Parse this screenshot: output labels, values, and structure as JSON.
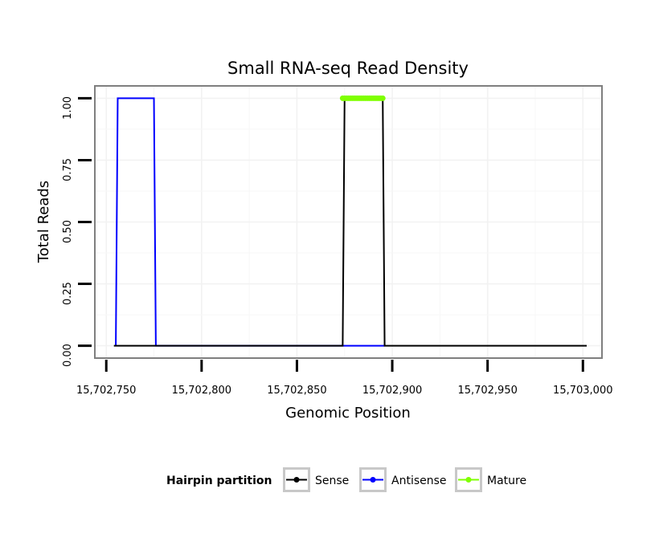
{
  "chart_data": {
    "type": "line",
    "title": "Small RNA-seq Read Density",
    "xlabel": "Genomic Position",
    "ylabel": "Total Reads",
    "xlim": [
      15702744,
      15703010
    ],
    "ylim": [
      -0.05,
      1.05
    ],
    "x_ticks": [
      15702750,
      15702800,
      15702850,
      15702900,
      15702950,
      15703000
    ],
    "x_tick_labels": [
      "15,702,750",
      "15,702,800",
      "15,702,850",
      "15,702,900",
      "15,702,950",
      "15,703,000"
    ],
    "y_ticks": [
      0,
      0.25,
      0.5,
      0.75,
      1
    ],
    "y_tick_labels": [
      "0.00",
      "0.25",
      "0.50",
      "0.75",
      "1.00"
    ],
    "grid": true,
    "legend": {
      "title": "Hairpin partition",
      "placement": "bottom",
      "entries": [
        {
          "name": "Sense",
          "color": "#000000"
        },
        {
          "name": "Antisense",
          "color": "#0000ff"
        },
        {
          "name": "Mature",
          "color": "#7fff00"
        }
      ]
    },
    "series": [
      {
        "name": "Antisense",
        "color": "#0000ff",
        "x": [
          15702755,
          15702756,
          15702775,
          15702776,
          15702875,
          15702896
        ],
        "y": [
          0,
          1,
          1,
          0,
          0,
          0
        ]
      },
      {
        "name": "Sense",
        "color": "#000000",
        "x": [
          15702754,
          15702874,
          15702875,
          15702895,
          15702896,
          15703002
        ],
        "y": [
          0,
          0,
          1,
          1,
          0,
          0
        ]
      },
      {
        "name": "Mature",
        "color": "#7fff00",
        "x": [
          15702874,
          15702875,
          15702876,
          15702877,
          15702878,
          15702879,
          15702880,
          15702881,
          15702882,
          15702883,
          15702884,
          15702885,
          15702886,
          15702887,
          15702888,
          15702889,
          15702890,
          15702891,
          15702892,
          15702893,
          15702894,
          15702895
        ],
        "y": [
          1,
          1,
          1,
          1,
          1,
          1,
          1,
          1,
          1,
          1,
          1,
          1,
          1,
          1,
          1,
          1,
          1,
          1,
          1,
          1,
          1,
          1
        ]
      }
    ]
  }
}
